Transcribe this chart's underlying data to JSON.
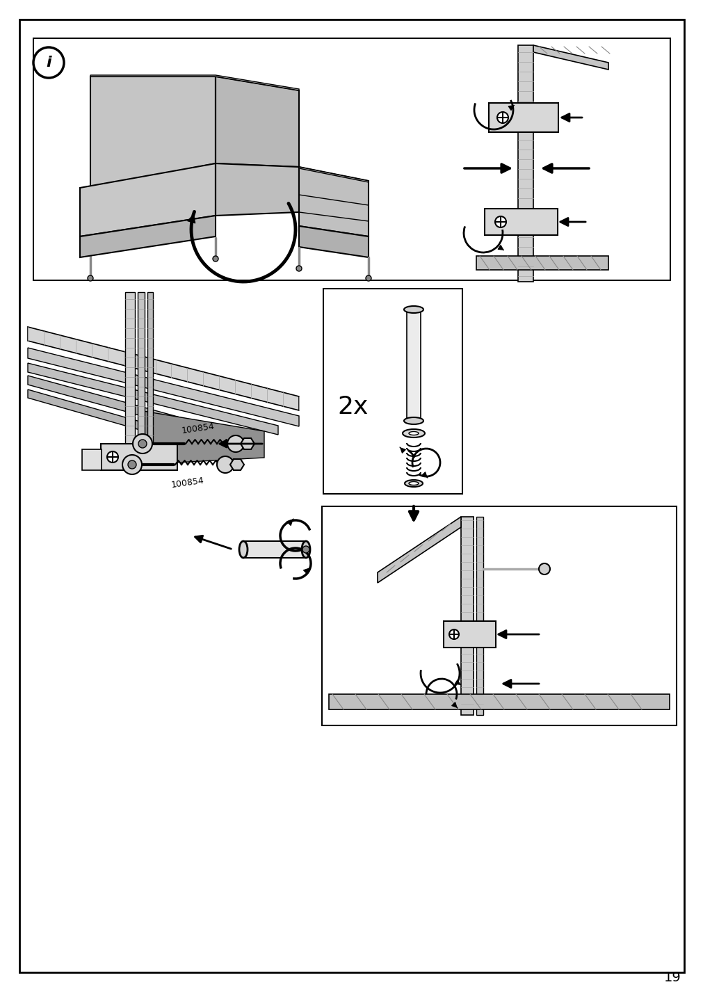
{
  "page_number": "19",
  "bg": "#ffffff",
  "gray1": "#c8c8c8",
  "gray2": "#b0b0b0",
  "gray3": "#e0e0e0",
  "gray4": "#d0d0d0",
  "gray5": "#a0a0a0",
  "black": "#000000",
  "label_2x": "2x",
  "sofa_color": "#c0c0c0",
  "sofa_dark": "#909090",
  "sofa_light": "#d8d8d8"
}
